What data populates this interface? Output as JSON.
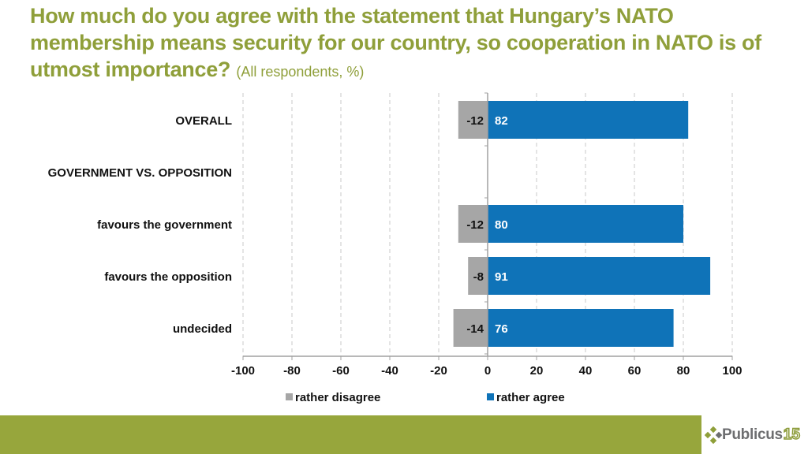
{
  "title": {
    "main": "How much do you agree with the statement that Hungary’s NATO membership means security for our country, so cooperation in NATO is of utmost importance?",
    "subtitle": "(All respondents, %)"
  },
  "colors": {
    "title": "#8f9f3a",
    "disagree": "#a6a6a6",
    "agree": "#0f73b8",
    "footer": "#97a63c",
    "grid": "#c8c8c8"
  },
  "chart_data": {
    "type": "bar",
    "orientation": "horizontal",
    "stacked": "diverging",
    "title": "How much do you agree with the statement that Hungary’s NATO membership means security for our country, so cooperation in NATO is of utmost importance? (All respondents, %)",
    "xlabel": "",
    "ylabel": "",
    "xlim": [
      -100,
      100
    ],
    "xticks": [
      -100,
      -80,
      -60,
      -40,
      -20,
      0,
      20,
      40,
      60,
      80,
      100
    ],
    "grid": "vertical dashed",
    "legend": "bottom",
    "categories": [
      "OVERALL",
      "GOVERNMENT VS. OPPOSITION",
      "favours the government",
      "favours the opposition",
      "undecided"
    ],
    "category_bold_caps": [
      true,
      true,
      false,
      false,
      false
    ],
    "series": [
      {
        "name": "rather disagree",
        "color": "#a6a6a6",
        "values": [
          -12,
          null,
          -12,
          -8,
          -14
        ]
      },
      {
        "name": "rather agree",
        "color": "#0f73b8",
        "values": [
          82,
          null,
          80,
          91,
          76
        ]
      }
    ]
  },
  "logo": {
    "text": "Publicus",
    "number": "15"
  }
}
